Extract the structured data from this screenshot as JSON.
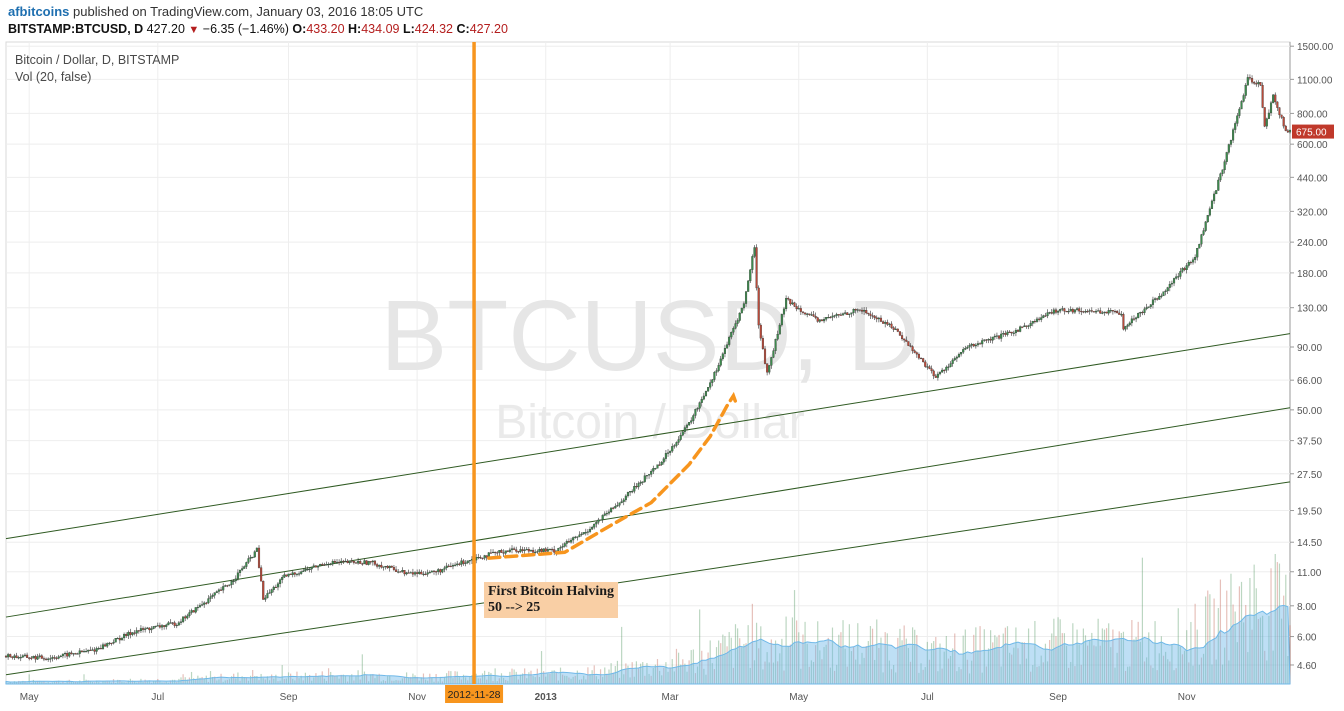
{
  "header": {
    "author": "afbitcoins",
    "published_text": "published on TradingView.com, January 03, 2016 18:05 UTC",
    "symbol": "BITSTAMP:BTCUSD, D",
    "last": "427.20",
    "change": "−6.35 (−1.46%)",
    "open_label": "O:",
    "open": "433.20",
    "high_label": "H:",
    "high": "434.09",
    "low_label": "L:",
    "low": "424.32",
    "close_label": "C:",
    "close": "427.20"
  },
  "chart_data": {
    "type": "candlestick",
    "title": "Bitcoin / Dollar, D, BITSTAMP",
    "study": "Vol (20, false)",
    "watermark_symbol": "BTCUSD, D",
    "watermark_name": "Bitcoin / Dollar",
    "y_scale": "log",
    "y_ticks": [
      "4.60",
      "6.00",
      "8.00",
      "11.00",
      "14.50",
      "19.50",
      "27.50",
      "37.50",
      "50.00",
      "66.00",
      "90.00",
      "130.00",
      "180.00",
      "240.00",
      "320.00",
      "440.00",
      "600.00",
      "800.00",
      "1100.00",
      "1500.00"
    ],
    "x_ticks": [
      "May",
      "Jul",
      "Sep",
      "Nov",
      "2013",
      "Mar",
      "May",
      "Jul",
      "Sep",
      "Nov"
    ],
    "last_price_label": "675.00",
    "highlight_date": "2012-11-28",
    "price_path": [
      [
        "2012-04-20",
        5.0
      ],
      [
        "2012-05-10",
        4.9
      ],
      [
        "2012-06-01",
        5.3
      ],
      [
        "2012-06-20",
        6.3
      ],
      [
        "2012-07-10",
        6.8
      ],
      [
        "2012-07-25",
        8.5
      ],
      [
        "2012-08-05",
        10.0
      ],
      [
        "2012-08-17",
        13.5
      ],
      [
        "2012-08-20",
        8.5
      ],
      [
        "2012-08-30",
        10.5
      ],
      [
        "2012-09-20",
        12.0
      ],
      [
        "2012-10-10",
        12.0
      ],
      [
        "2012-10-28",
        10.8
      ],
      [
        "2012-11-10",
        11.0
      ],
      [
        "2012-11-28",
        12.5
      ],
      [
        "2012-12-15",
        13.5
      ],
      [
        "2013-01-05",
        13.4
      ],
      [
        "2013-01-20",
        16.0
      ],
      [
        "2013-02-05",
        21.0
      ],
      [
        "2013-02-25",
        31.0
      ],
      [
        "2013-03-10",
        44.0
      ],
      [
        "2013-03-22",
        70.0
      ],
      [
        "2013-04-05",
        135.0
      ],
      [
        "2013-04-10",
        230.0
      ],
      [
        "2013-04-12",
        110.0
      ],
      [
        "2013-04-16",
        70.0
      ],
      [
        "2013-04-25",
        140.0
      ],
      [
        "2013-05-10",
        115.0
      ],
      [
        "2013-05-30",
        128.0
      ],
      [
        "2013-06-15",
        108.0
      ],
      [
        "2013-07-05",
        68.0
      ],
      [
        "2013-07-20",
        90.0
      ],
      [
        "2013-08-10",
        103.0
      ],
      [
        "2013-09-01",
        128.0
      ],
      [
        "2013-10-01",
        124.0
      ],
      [
        "2013-10-02",
        108.0
      ],
      [
        "2013-10-20",
        148.0
      ],
      [
        "2013-11-05",
        210.0
      ],
      [
        "2013-11-18",
        480.0
      ],
      [
        "2013-11-30",
        1100.0
      ],
      [
        "2013-12-06",
        1050.0
      ],
      [
        "2013-12-08",
        700.0
      ],
      [
        "2013-12-12",
        950.0
      ],
      [
        "2013-12-18",
        675.0
      ]
    ],
    "channel_lines": [
      {
        "x1": "2012-04-20",
        "y1": 15.0,
        "x2": "2013-12-20",
        "y2": 102.0
      },
      {
        "x1": "2012-04-20",
        "y1": 7.2,
        "x2": "2013-12-20",
        "y2": 51.0
      },
      {
        "x1": "2012-04-20",
        "y1": 4.2,
        "x2": "2013-12-20",
        "y2": 25.5
      }
    ],
    "curve_path": [
      [
        "2012-12-05",
        12.5
      ],
      [
        "2013-01-10",
        13.2
      ],
      [
        "2013-02-01",
        17.0
      ],
      [
        "2013-02-20",
        21.0
      ],
      [
        "2013-03-10",
        30.0
      ],
      [
        "2013-03-20",
        39.0
      ],
      [
        "2013-03-28",
        52.0
      ],
      [
        "2013-03-31",
        57.0
      ],
      [
        "2013-04-01",
        54.0
      ]
    ],
    "annotation": {
      "date": "2012-11-30",
      "line1": "First Bitcoin Halving",
      "line2": "50 --> 25"
    },
    "colors": {
      "up": "#3d8a4d",
      "down": "#b84a3a",
      "highlight": "#f7951e",
      "channel": "#2f5a22",
      "volume_ma": "#6fb8e8",
      "curve": "#f7951e"
    }
  }
}
